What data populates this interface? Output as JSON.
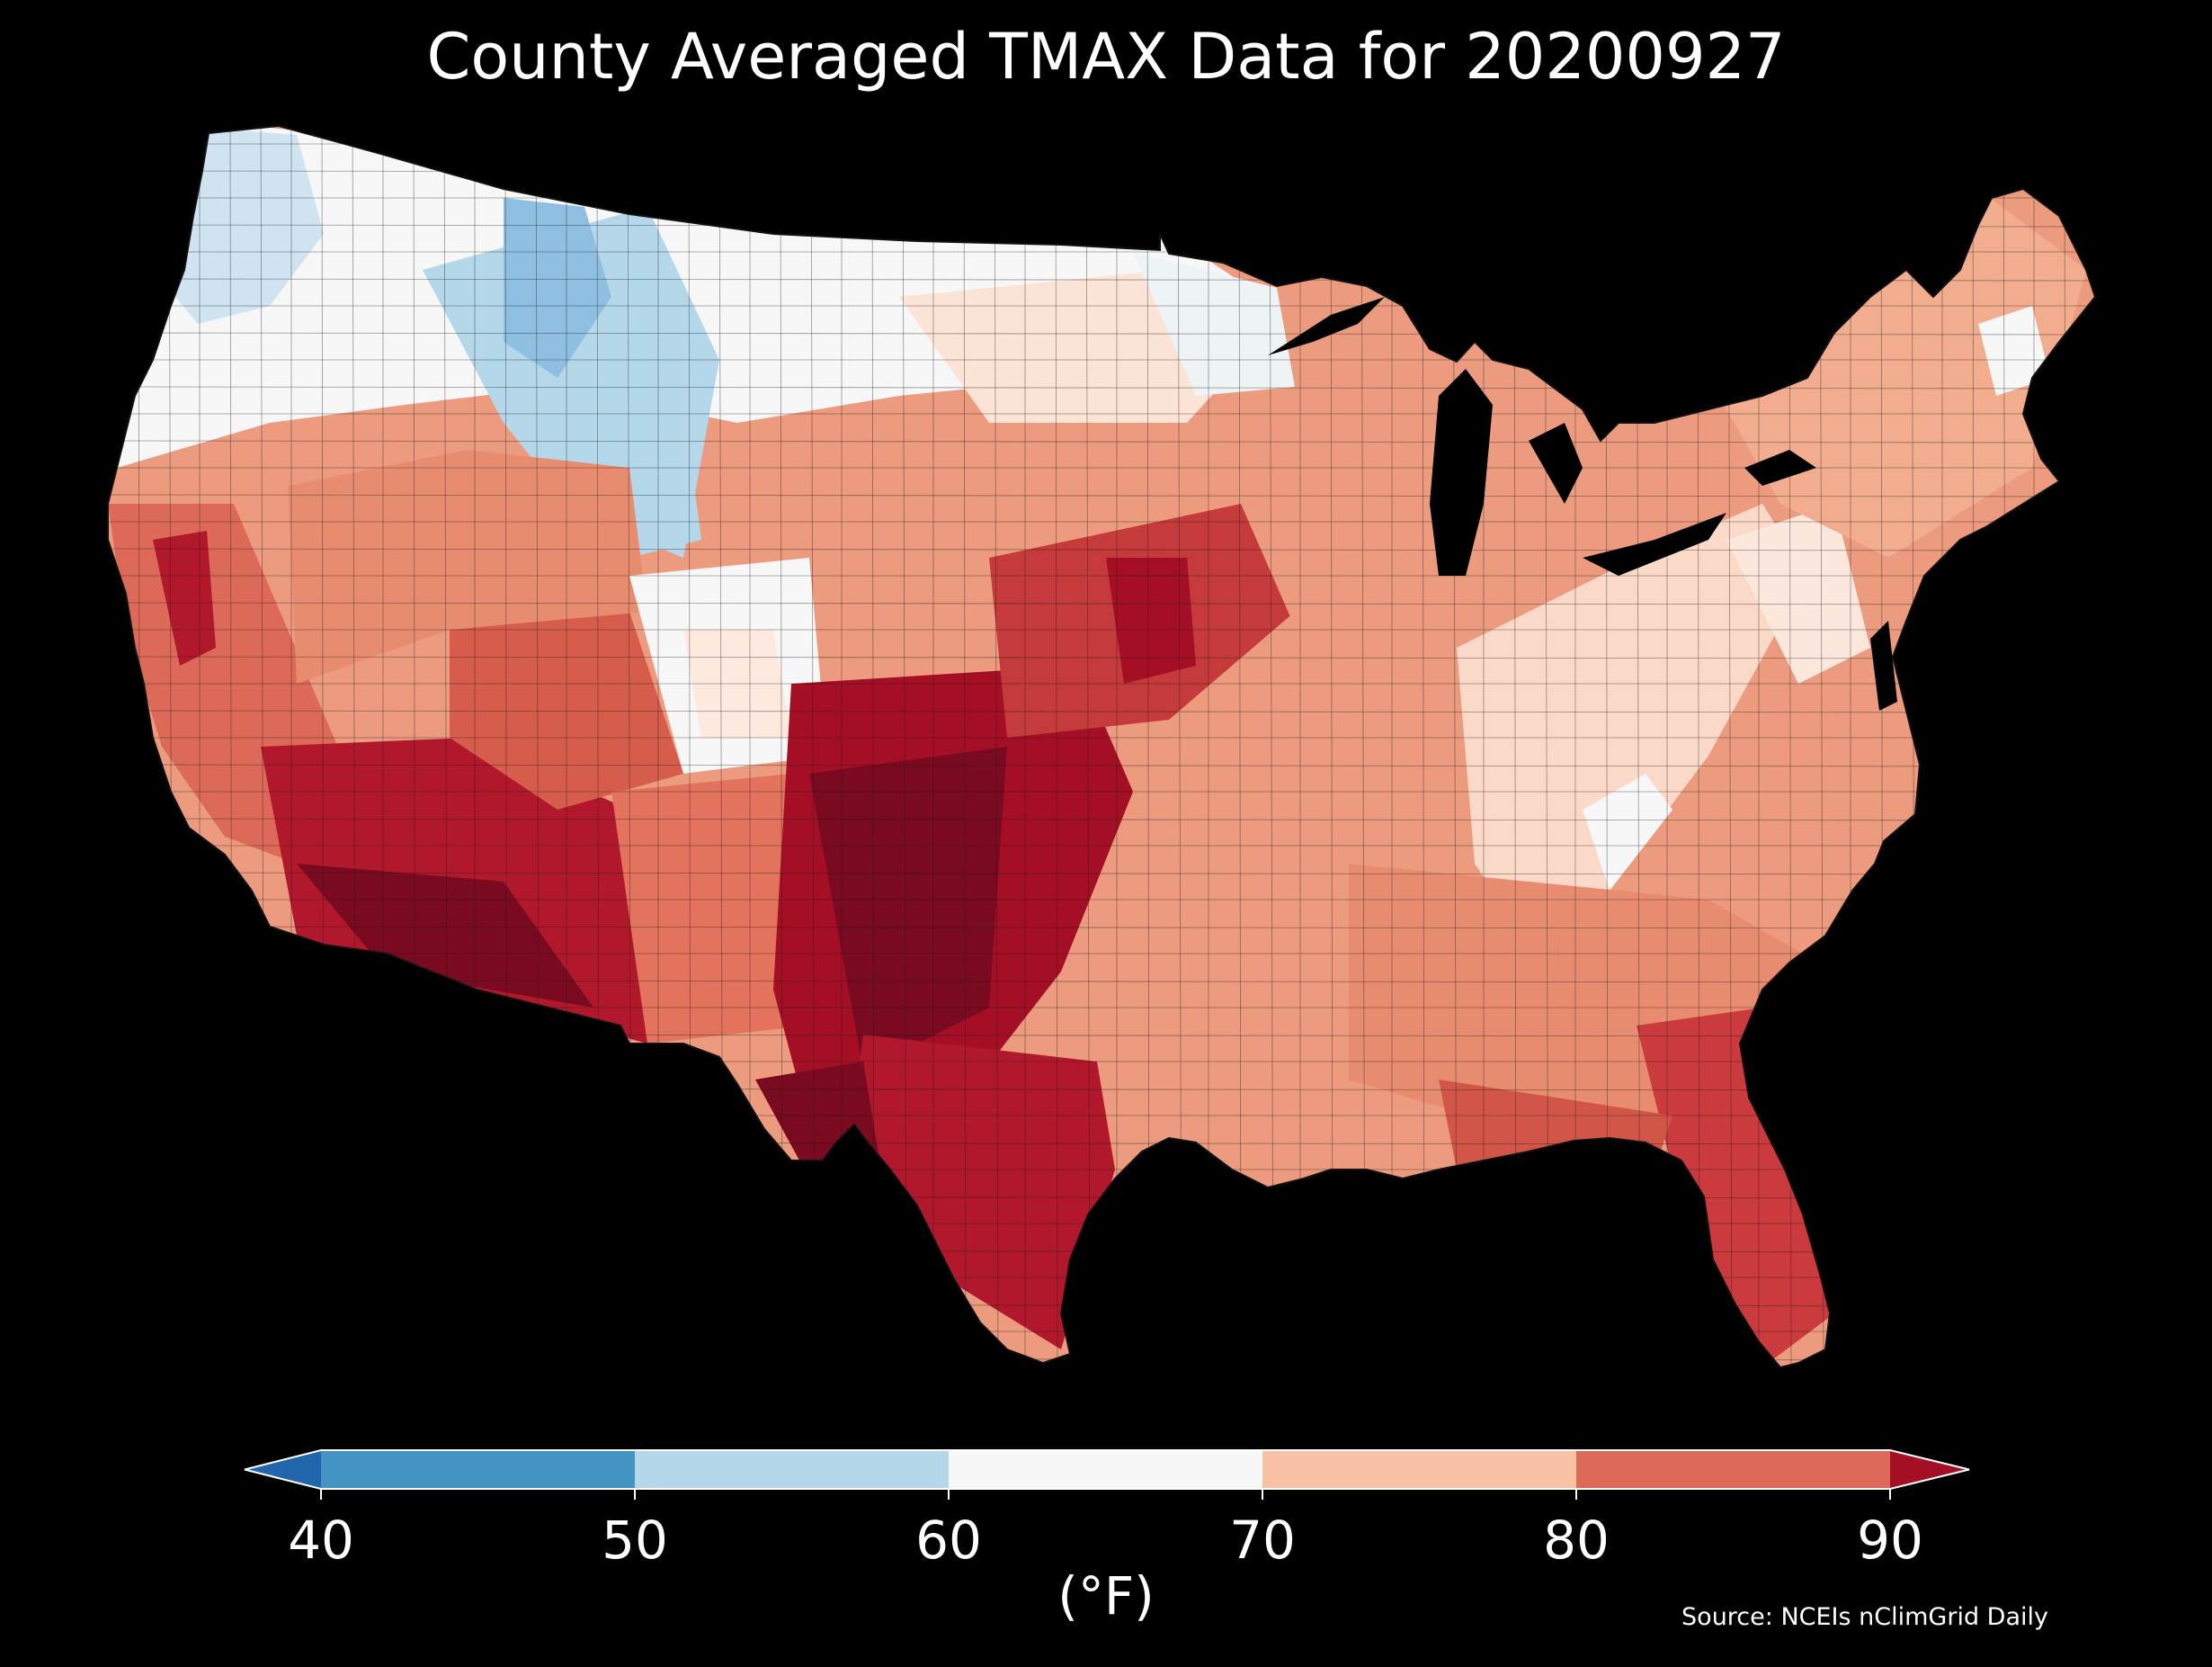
{
  "title": "County Averaged TMAX Data for 20200927",
  "colorbar": {
    "units_label": "(°F)",
    "ticks": [
      "40",
      "50",
      "60",
      "70",
      "80",
      "90"
    ],
    "bins": [
      {
        "range": "<40",
        "color": "#2166ac"
      },
      {
        "range": "40-50",
        "color": "#4393c3"
      },
      {
        "range": "50-60",
        "color": "#b5d7ea"
      },
      {
        "range": "60-70",
        "color": "#f7f7f7"
      },
      {
        "range": "70-80",
        "color": "#f9c2a5"
      },
      {
        "range": "80-90",
        "color": "#dd6a58"
      },
      {
        "range": ">90",
        "color": "#a50f26"
      }
    ],
    "extend": "both"
  },
  "map": {
    "region": "Contiguous United States",
    "variable": "TMAX",
    "resolution": "county",
    "background": "#000000",
    "border_color": "#222222",
    "regional_values_F": [
      {
        "region": "Pacific Northwest coast",
        "value": 62
      },
      {
        "region": "Idaho / Western Montana",
        "value": 52
      },
      {
        "region": "Wyoming",
        "value": 55
      },
      {
        "region": "Northern Plains",
        "value": 64
      },
      {
        "region": "Upper Midwest / Minnesota",
        "value": 66
      },
      {
        "region": "California Central Valley",
        "value": 86
      },
      {
        "region": "Desert Southwest",
        "value": 94
      },
      {
        "region": "Southern Great Plains",
        "value": 92
      },
      {
        "region": "Central Plains / Kansas",
        "value": 86
      },
      {
        "region": "Midwest",
        "value": 77
      },
      {
        "region": "Ohio Valley",
        "value": 74
      },
      {
        "region": "Appalachians",
        "value": 67
      },
      {
        "region": "Northeast",
        "value": 74
      },
      {
        "region": "Southeast",
        "value": 78
      },
      {
        "region": "Gulf Coast",
        "value": 84
      },
      {
        "region": "Florida",
        "value": 86
      },
      {
        "region": "South Texas",
        "value": 88
      }
    ]
  },
  "source": "Source: NCEIs nClimGrid Daily"
}
